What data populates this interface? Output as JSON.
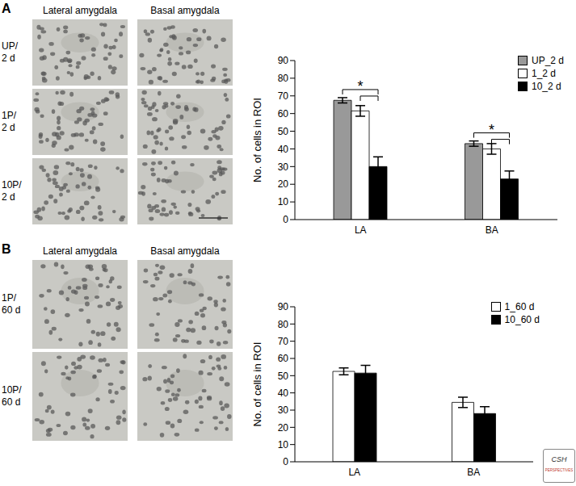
{
  "panels": [
    {
      "label": "A",
      "micrographs": {
        "columns": [
          "Lateral amygdala",
          "Basal amygdala"
        ],
        "rows": [
          [
            "UP/",
            "2 d"
          ],
          [
            "1P/",
            "2 d"
          ],
          [
            "10P/",
            "2 d"
          ]
        ]
      }
    },
    {
      "label": "B",
      "micrographs": {
        "columns": [
          "Lateral amygdala",
          "Basal amygdala"
        ],
        "rows": [
          [
            "1P/",
            "60 d"
          ],
          [
            "10P/",
            "60 d"
          ]
        ]
      }
    }
  ],
  "logo": [
    "CSH",
    "PERSPECTIVES"
  ],
  "chart_data": [
    {
      "type": "bar",
      "y_label": "No. of cells in ROI",
      "categories": [
        "LA",
        "BA"
      ],
      "series": [
        {
          "name": "UP_2 d",
          "color": "#999999",
          "values": [
            67.5,
            43
          ],
          "errors": [
            1.5,
            1.5
          ]
        },
        {
          "name": "1_2 d",
          "color": "#ffffff",
          "values": [
            61.5,
            40
          ],
          "errors": [
            3,
            3
          ]
        },
        {
          "name": "10_2 d",
          "color": "#000000",
          "values": [
            30,
            23
          ],
          "errors": [
            5.5,
            4.5
          ]
        }
      ],
      "ylim": [
        0,
        90
      ],
      "yticks": [
        0,
        10,
        20,
        30,
        40,
        50,
        60,
        70,
        80,
        90
      ],
      "legend": "upper right",
      "annotations": [
        {
          "category": "LA",
          "text": "*",
          "pairs": [
            [
              "UP_2 d",
              "10_2 d"
            ],
            [
              "1_2 d",
              "10_2 d"
            ]
          ]
        },
        {
          "category": "BA",
          "text": "*",
          "pairs": [
            [
              "UP_2 d",
              "10_2 d"
            ],
            [
              "1_2 d",
              "10_2 d"
            ]
          ]
        }
      ]
    },
    {
      "type": "bar",
      "y_label": "No. of cells in ROI",
      "categories": [
        "LA",
        "BA"
      ],
      "series": [
        {
          "name": "1_60 d",
          "color": "#ffffff",
          "values": [
            52.5,
            34.5
          ],
          "errors": [
            2,
            3
          ]
        },
        {
          "name": "10_60 d",
          "color": "#000000",
          "values": [
            51.5,
            28
          ],
          "errors": [
            4.5,
            4
          ]
        }
      ],
      "ylim": [
        0,
        90
      ],
      "yticks": [
        0,
        10,
        20,
        30,
        40,
        50,
        60,
        70,
        80,
        90
      ],
      "legend": "upper right"
    }
  ]
}
